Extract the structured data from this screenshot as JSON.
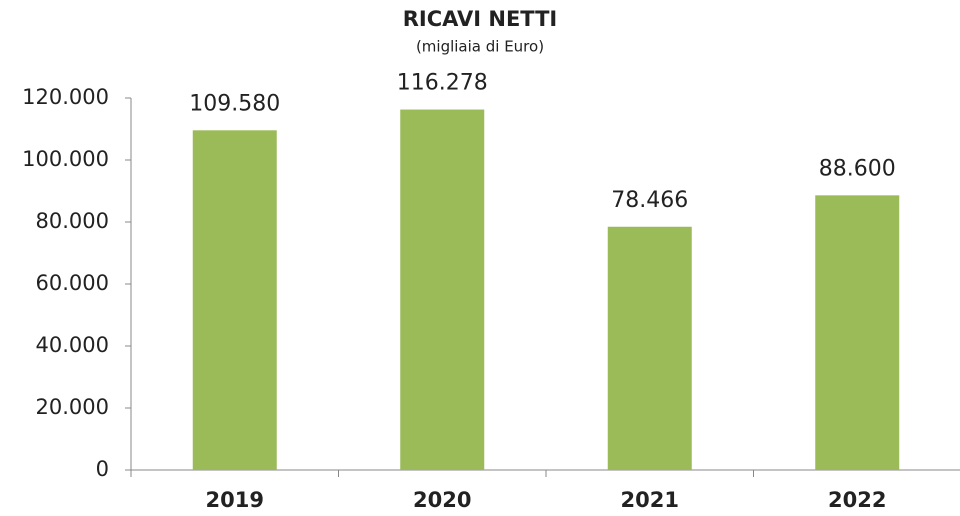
{
  "chart_data": {
    "type": "bar",
    "title": "RICAVI NETTI",
    "subtitle": "(migliaia di Euro)",
    "categories": [
      "2019",
      "2020",
      "2021",
      "2022"
    ],
    "values": [
      109580,
      116278,
      78466,
      88600
    ],
    "value_labels": [
      "109.580",
      "116.278",
      "78.466",
      "88.600"
    ],
    "color": "#9bbb59",
    "ylim": [
      0,
      120000
    ],
    "yticks": [
      0,
      {
        "value": 20000,
        "label": "20.000"
      },
      {
        "value": 40000,
        "label": "40.000"
      },
      {
        "value": 60000,
        "label": "60.000"
      },
      {
        "value": 80000,
        "label": "80.000"
      },
      {
        "value": 100000,
        "label": "100.000"
      },
      {
        "value": 120000,
        "label": "120.000"
      }
    ],
    "grid": false
  }
}
